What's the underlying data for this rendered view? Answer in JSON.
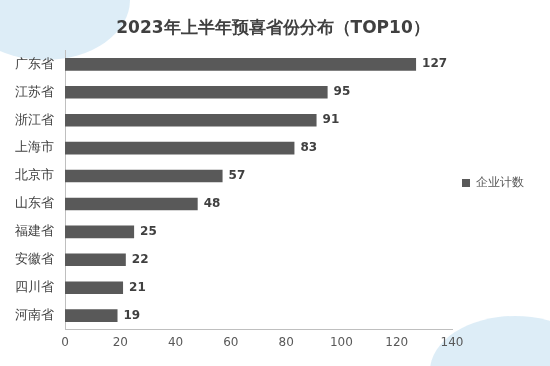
{
  "chart_data": {
    "type": "bar",
    "title": "2023年上半年预喜省份分布（TOP10）",
    "orientation": "horizontal",
    "categories": [
      "广东省",
      "江苏省",
      "浙江省",
      "上海市",
      "北京市",
      "山东省",
      "福建省",
      "安徽省",
      "四川省",
      "河南省"
    ],
    "series": [
      {
        "name": "企业计数",
        "color": "#595959",
        "values": [
          127,
          95,
          91,
          83,
          57,
          48,
          25,
          22,
          21,
          19
        ]
      }
    ],
    "xlim": [
      0,
      140
    ],
    "xticks": [
      0,
      20,
      40,
      60,
      80,
      100,
      120,
      140
    ],
    "grid": false,
    "legend": "right",
    "data_labels": true
  }
}
